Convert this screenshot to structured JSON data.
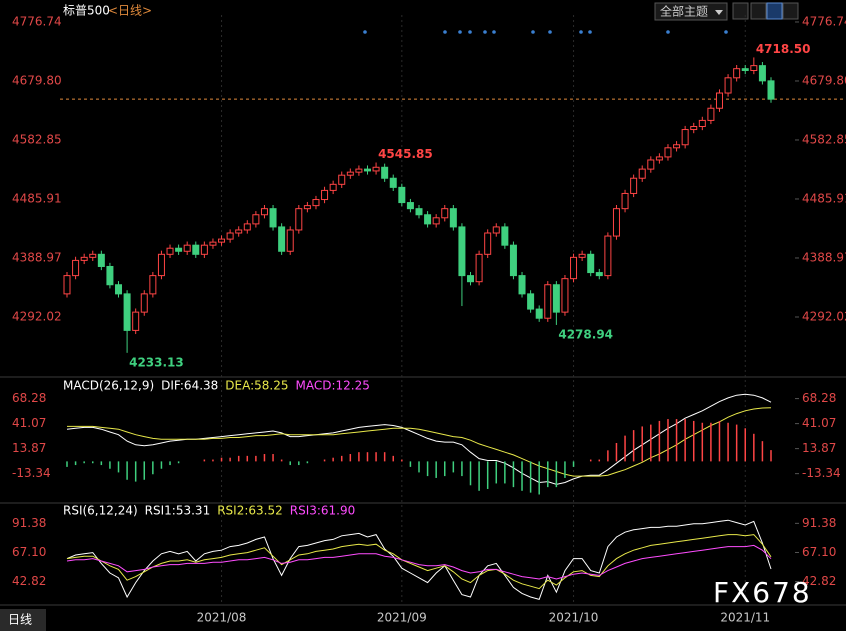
{
  "header": {
    "symbol": "标普500",
    "period": "<日线>",
    "theme_button": "全部主题"
  },
  "footer": {
    "tab": "日线",
    "watermark": "FX678"
  },
  "chart_data": [
    {
      "type": "candlestick",
      "categories": [
        null,
        null,
        null,
        null,
        null,
        null,
        null,
        null,
        null,
        null,
        null,
        null,
        null,
        null,
        null,
        null,
        null,
        null,
        "2021/08",
        null,
        null,
        null,
        null,
        null,
        null,
        null,
        null,
        null,
        null,
        null,
        null,
        null,
        null,
        null,
        null,
        null,
        null,
        null,
        null,
        "2021/09",
        null,
        null,
        null,
        null,
        null,
        null,
        null,
        null,
        null,
        null,
        null,
        null,
        null,
        null,
        null,
        null,
        null,
        null,
        null,
        "2021/10",
        null,
        null,
        null,
        null,
        null,
        null,
        null,
        null,
        null,
        null,
        null,
        null,
        null,
        null,
        null,
        null,
        null,
        null,
        null,
        "2021/11",
        null,
        null,
        null
      ],
      "candles": [
        [
          4330,
          4366,
          4324,
          4360
        ],
        [
          4360,
          4391,
          4354,
          4385
        ],
        [
          4385,
          4396,
          4379,
          4390
        ],
        [
          4390,
          4401,
          4384,
          4395
        ],
        [
          4395,
          4401,
          4369,
          4375
        ],
        [
          4375,
          4381,
          4339,
          4345
        ],
        [
          4345,
          4351,
          4324,
          4330
        ],
        [
          4330,
          4336,
          4233.13,
          4270
        ],
        [
          4270,
          4306,
          4264,
          4300
        ],
        [
          4300,
          4336,
          4294,
          4330
        ],
        [
          4330,
          4366,
          4324,
          4360
        ],
        [
          4360,
          4401,
          4354,
          4395
        ],
        [
          4395,
          4411,
          4389,
          4405
        ],
        [
          4405,
          4411,
          4394,
          4400
        ],
        [
          4400,
          4416,
          4394,
          4410
        ],
        [
          4410,
          4416,
          4389,
          4395
        ],
        [
          4395,
          4416,
          4389,
          4410
        ],
        [
          4410,
          4421,
          4404,
          4415
        ],
        [
          4415,
          4426,
          4409,
          4420
        ],
        [
          4420,
          4436,
          4414,
          4430
        ],
        [
          4430,
          4441,
          4424,
          4435
        ],
        [
          4435,
          4451,
          4429,
          4445
        ],
        [
          4445,
          4466,
          4439,
          4460
        ],
        [
          4460,
          4476,
          4454,
          4470
        ],
        [
          4470,
          4476,
          4434,
          4440
        ],
        [
          4440,
          4446,
          4394,
          4400
        ],
        [
          4400,
          4441,
          4394,
          4435
        ],
        [
          4435,
          4476,
          4429,
          4470
        ],
        [
          4470,
          4481,
          4464,
          4475
        ],
        [
          4475,
          4491,
          4469,
          4485
        ],
        [
          4485,
          4506,
          4479,
          4500
        ],
        [
          4500,
          4516,
          4494,
          4510
        ],
        [
          4510,
          4531,
          4504,
          4525
        ],
        [
          4525,
          4536,
          4519,
          4530
        ],
        [
          4530,
          4541,
          4524,
          4535
        ],
        [
          4535,
          4541,
          4526,
          4532
        ],
        [
          4532,
          4545.85,
          4526,
          4538
        ],
        [
          4538,
          4544,
          4514,
          4520
        ],
        [
          4520,
          4526,
          4499,
          4505
        ],
        [
          4505,
          4511,
          4474,
          4480
        ],
        [
          4480,
          4486,
          4464,
          4470
        ],
        [
          4470,
          4476,
          4454,
          4460
        ],
        [
          4460,
          4466,
          4439,
          4445
        ],
        [
          4445,
          4461,
          4439,
          4455
        ],
        [
          4455,
          4476,
          4449,
          4470
        ],
        [
          4470,
          4476,
          4434,
          4440
        ],
        [
          4440,
          4446,
          4310,
          4360
        ],
        [
          4360,
          4366,
          4344,
          4350
        ],
        [
          4350,
          4401,
          4344,
          4395
        ],
        [
          4395,
          4436,
          4389,
          4430
        ],
        [
          4430,
          4446,
          4424,
          4440
        ],
        [
          4440,
          4446,
          4404,
          4410
        ],
        [
          4410,
          4416,
          4354,
          4360
        ],
        [
          4360,
          4366,
          4324,
          4330
        ],
        [
          4330,
          4336,
          4299,
          4305
        ],
        [
          4305,
          4311,
          4284,
          4290
        ],
        [
          4290,
          4351,
          4284,
          4345
        ],
        [
          4345,
          4351,
          4278.94,
          4300
        ],
        [
          4300,
          4361,
          4294,
          4355
        ],
        [
          4355,
          4396,
          4349,
          4390
        ],
        [
          4390,
          4401,
          4384,
          4395
        ],
        [
          4395,
          4401,
          4359,
          4365
        ],
        [
          4365,
          4371,
          4354,
          4360
        ],
        [
          4360,
          4431,
          4354,
          4425
        ],
        [
          4425,
          4476,
          4419,
          4470
        ],
        [
          4470,
          4501,
          4464,
          4495
        ],
        [
          4495,
          4526,
          4489,
          4520
        ],
        [
          4520,
          4541,
          4514,
          4535
        ],
        [
          4535,
          4556,
          4529,
          4550
        ],
        [
          4550,
          4561,
          4544,
          4555
        ],
        [
          4555,
          4576,
          4549,
          4570
        ],
        [
          4570,
          4581,
          4564,
          4575
        ],
        [
          4575,
          4606,
          4569,
          4600
        ],
        [
          4600,
          4611,
          4594,
          4605
        ],
        [
          4605,
          4621,
          4599,
          4615
        ],
        [
          4615,
          4641,
          4609,
          4635
        ],
        [
          4635,
          4666,
          4629,
          4660
        ],
        [
          4660,
          4691,
          4654,
          4685
        ],
        [
          4685,
          4706,
          4679,
          4700
        ],
        [
          4700,
          4706,
          4691,
          4697
        ],
        [
          4697,
          4718.5,
          4691,
          4705
        ],
        [
          4705,
          4711,
          4674,
          4680
        ],
        [
          4680,
          4686,
          4644,
          4650
        ]
      ],
      "up_color": "#ff4545",
      "down_color": "#3fd07f",
      "line_color": "#e08a3c",
      "annotations": [
        "4233.13",
        "4545.85",
        "4278.94",
        "4718.50"
      ],
      "ylim": [
        4196.7,
        4788.2
      ],
      "yticks": [
        4292.02,
        4388.97,
        4485.91,
        4582.85,
        {
          "value": 4679.8,
          "label": "4679.80"
        },
        4776.74
      ]
    },
    {
      "type": "macd",
      "legend": [
        "MACD(26,12,9)",
        "DIF:64.38",
        "DEA:58.25",
        "MACD:12.25"
      ],
      "series": [
        {
          "color": "#ffffff",
          "values": [
            35,
            36,
            37,
            37,
            35,
            32,
            29,
            22,
            18,
            17,
            18,
            20,
            22,
            23,
            24,
            24,
            25,
            26,
            27,
            28,
            29,
            30,
            31,
            32,
            33,
            31,
            27,
            27,
            28,
            29,
            30,
            31,
            33,
            35,
            37,
            38,
            39,
            40,
            39,
            37,
            33,
            29,
            25,
            22,
            21,
            21,
            18,
            10,
            3,
            1,
            1,
            -2,
            -7,
            -13,
            -18,
            -23,
            -22,
            -25,
            -23,
            -19,
            -16,
            -15,
            -15,
            -9,
            -2,
            5,
            12,
            18,
            24,
            30,
            36,
            41,
            47,
            51,
            55,
            60,
            65,
            69,
            72,
            73,
            72,
            69,
            64.38
          ]
        },
        {
          "color": "#e8e84a",
          "values": [
            38,
            38,
            38,
            38,
            37,
            36,
            35,
            32,
            29,
            27,
            25,
            24,
            24,
            24,
            24,
            24,
            24,
            25,
            25,
            26,
            26,
            27,
            28,
            28,
            29,
            30,
            29,
            29,
            29,
            29,
            29,
            29,
            30,
            31,
            32,
            33,
            34,
            35,
            36,
            36,
            36,
            35,
            33,
            31,
            29,
            27,
            26,
            23,
            19,
            16,
            13,
            10,
            7,
            3,
            -1,
            -5,
            -8,
            -11,
            -14,
            -16,
            -16,
            -16,
            -16,
            -15,
            -12,
            -9,
            -5,
            -1,
            4,
            8,
            13,
            18,
            24,
            29,
            34,
            39,
            43,
            48,
            52,
            55,
            57,
            58,
            58.25
          ]
        },
        {
          "color": "#ff4dff",
          "style": "bar",
          "values": [
            -6,
            -4,
            -2,
            -2,
            -4,
            -8,
            -12,
            -20,
            -22,
            -20,
            -14,
            -8,
            -4,
            -2,
            0,
            0,
            2,
            2,
            4,
            4,
            6,
            6,
            6,
            8,
            8,
            2,
            -4,
            -4,
            -2,
            0,
            2,
            4,
            6,
            8,
            10,
            10,
            10,
            10,
            6,
            2,
            -6,
            -12,
            -16,
            -18,
            -16,
            -12,
            -16,
            -26,
            -32,
            -30,
            -24,
            -24,
            -28,
            -32,
            -34,
            -36,
            -28,
            -28,
            -18,
            -6,
            0,
            2,
            2,
            12,
            20,
            28,
            34,
            38,
            40,
            44,
            46,
            46,
            46,
            44,
            42,
            42,
            44,
            42,
            40,
            36,
            30,
            22,
            12.25
          ]
        }
      ],
      "bar_colors": [
        "#ff4545",
        "#3fd07f"
      ],
      "ylim": [
        -42,
        88.5
      ],
      "yticks": [
        68.28,
        41.07,
        13.87,
        -13.34
      ]
    },
    {
      "type": "line",
      "legend": [
        "RSI(6,12,24)",
        "RSI1:53.31",
        "RSI2:63.52",
        "RSI3:61.90"
      ],
      "series": [
        {
          "color": "#ffffff",
          "values": [
            62,
            65,
            66,
            67,
            58,
            50,
            46,
            30,
            42,
            52,
            60,
            66,
            68,
            66,
            68,
            60,
            66,
            68,
            69,
            72,
            73,
            75,
            78,
            80,
            62,
            48,
            62,
            72,
            73,
            75,
            77,
            78,
            81,
            82,
            83,
            80,
            82,
            70,
            64,
            54,
            50,
            46,
            42,
            50,
            56,
            44,
            32,
            30,
            48,
            56,
            58,
            48,
            38,
            33,
            30,
            28,
            48,
            34,
            52,
            62,
            62,
            52,
            50,
            72,
            80,
            84,
            86,
            87,
            88,
            88,
            89,
            89,
            90,
            91,
            91,
            92,
            93,
            94,
            92,
            90,
            93,
            75,
            53.31
          ]
        },
        {
          "color": "#e8e84a",
          "values": [
            62,
            63,
            64,
            64,
            60,
            56,
            53,
            44,
            47,
            51,
            55,
            58,
            60,
            60,
            61,
            59,
            61,
            62,
            63,
            65,
            66,
            67,
            69,
            71,
            64,
            57,
            61,
            65,
            66,
            68,
            69,
            70,
            72,
            73,
            74,
            73,
            74,
            69,
            66,
            61,
            58,
            55,
            52,
            54,
            56,
            51,
            45,
            42,
            48,
            52,
            53,
            49,
            44,
            41,
            39,
            37,
            44,
            40,
            46,
            51,
            52,
            48,
            47,
            56,
            62,
            66,
            69,
            71,
            73,
            74,
            75,
            76,
            77,
            78,
            79,
            80,
            81,
            82,
            82,
            81,
            82,
            74,
            63.52
          ]
        },
        {
          "color": "#ff4dff",
          "values": [
            60,
            61,
            61,
            62,
            60,
            58,
            56,
            51,
            52,
            53,
            55,
            56,
            57,
            57,
            58,
            58,
            58,
            59,
            59,
            60,
            61,
            61,
            62,
            63,
            61,
            58,
            59,
            61,
            61,
            62,
            63,
            63,
            64,
            65,
            66,
            66,
            66,
            64,
            63,
            61,
            59,
            57,
            56,
            56,
            57,
            55,
            52,
            50,
            51,
            53,
            53,
            51,
            49,
            47,
            46,
            45,
            47,
            45,
            47,
            49,
            50,
            49,
            48,
            52,
            55,
            58,
            60,
            62,
            63,
            64,
            65,
            66,
            67,
            68,
            69,
            70,
            71,
            72,
            72,
            72,
            73,
            69,
            61.9
          ]
        }
      ],
      "ylim": [
        25,
        105
      ],
      "yticks": [
        91.38,
        {
          "value": 67.1,
          "label": "67.10"
        },
        42.82
      ]
    }
  ]
}
